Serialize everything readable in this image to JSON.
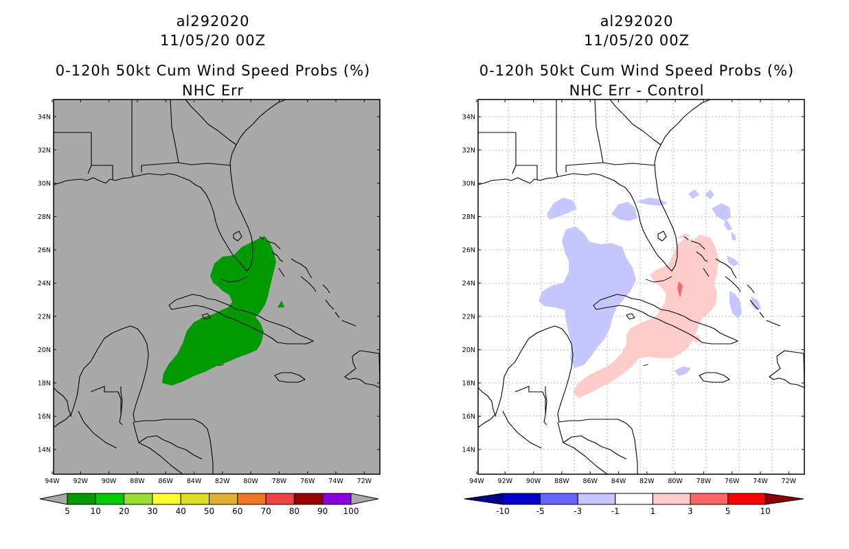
{
  "left": {
    "storm_id": "al292020",
    "datetime": "11/05/20 00Z",
    "product": "0-120h 50kt Cum Wind Speed Probs (%)",
    "subtitle": "NHC Err",
    "background_color": "#a9a9a9",
    "colorbar": {
      "labels": [
        "5",
        "10",
        "20",
        "30",
        "40",
        "50",
        "60",
        "70",
        "80",
        "90",
        "100"
      ],
      "colors": [
        "#009900",
        "#00cc00",
        "#99dd33",
        "#ffff33",
        "#dddd22",
        "#e0b030",
        "#ee7722",
        "#ee4444",
        "#990000",
        "#8800dd"
      ]
    }
  },
  "right": {
    "storm_id": "al292020",
    "datetime": "11/05/20 00Z",
    "product": "0-120h 50kt Cum Wind Speed Probs (%)",
    "subtitle": "NHC Err - Control",
    "background_color": "#ffffff",
    "colorbar": {
      "labels": [
        "-10",
        "-5",
        "-3",
        "-1",
        "1",
        "3",
        "5",
        "10"
      ],
      "colors": [
        "#0000cc",
        "#6666ff",
        "#c7c7ff",
        "#ffffff",
        "#ffcccc",
        "#ff6666",
        "#ff0000"
      ],
      "end_low": "#000088",
      "end_high": "#880000"
    }
  },
  "axes": {
    "lon_ticks": [
      "94W",
      "92W",
      "90W",
      "88W",
      "86W",
      "84W",
      "82W",
      "80W",
      "78W",
      "76W",
      "74W",
      "72W"
    ],
    "lat_ticks": [
      "34N",
      "32N",
      "30N",
      "28N",
      "26N",
      "24N",
      "22N",
      "20N",
      "18N",
      "16N",
      "14N"
    ]
  }
}
